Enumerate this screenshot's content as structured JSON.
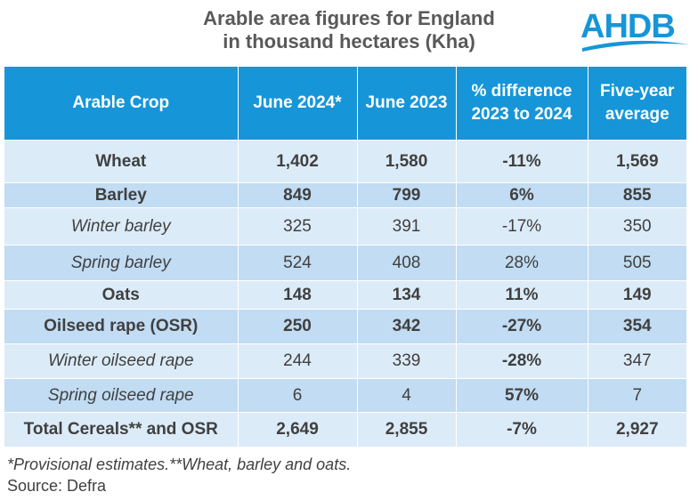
{
  "title": {
    "line1": "Arable area figures for England",
    "line2": "in thousand hectares (Kha)"
  },
  "logo": {
    "text": "AHDB",
    "color": "#1696d8"
  },
  "table": {
    "headers": {
      "crop": "Arable Crop",
      "june2024": "June 2024*",
      "june2023": "June 2023",
      "pct_line1": "% difference",
      "pct_line2": "2023 to 2024",
      "avg_line1": "Five-year",
      "avg_line2": "average"
    },
    "rows": [
      {
        "crop": "Wheat",
        "june2024": "1,402",
        "june2023": "1,580",
        "pct": "-11%",
        "avg": "1,569"
      },
      {
        "crop": "Barley",
        "june2024": "849",
        "june2023": "799",
        "pct": "6%",
        "avg": "855"
      },
      {
        "crop": "Winter barley",
        "june2024": "325",
        "june2023": "391",
        "pct": "-17%",
        "avg": "350"
      },
      {
        "crop": "Spring barley",
        "june2024": "524",
        "june2023": "408",
        "pct": "28%",
        "avg": "505"
      },
      {
        "crop": "Oats",
        "june2024": "148",
        "june2023": "134",
        "pct": "11%",
        "avg": "149"
      },
      {
        "crop": "Oilseed rape (OSR)",
        "june2024": "250",
        "june2023": "342",
        "pct": "-27%",
        "avg": "354"
      },
      {
        "crop": "Winter oilseed rape",
        "june2024": "244",
        "june2023": "339",
        "pct": "-28%",
        "avg": "347"
      },
      {
        "crop": "Spring oilseed rape",
        "june2024": "6",
        "june2023": "4",
        "pct": "57%",
        "avg": "7"
      },
      {
        "crop": "Total Cereals** and OSR",
        "june2024": "2,649",
        "june2023": "2,855",
        "pct": "-7%",
        "avg": "2,927"
      }
    ]
  },
  "colors": {
    "header_bg": "#1696d8",
    "row_light": "#dcebf8",
    "row_mid": "#c1dcf3",
    "negative": "#e81c24",
    "positive": "#1aa84b"
  },
  "footer": {
    "note": "*Provisional estimates.**Wheat, barley and oats.",
    "source": "Source: Defra"
  }
}
